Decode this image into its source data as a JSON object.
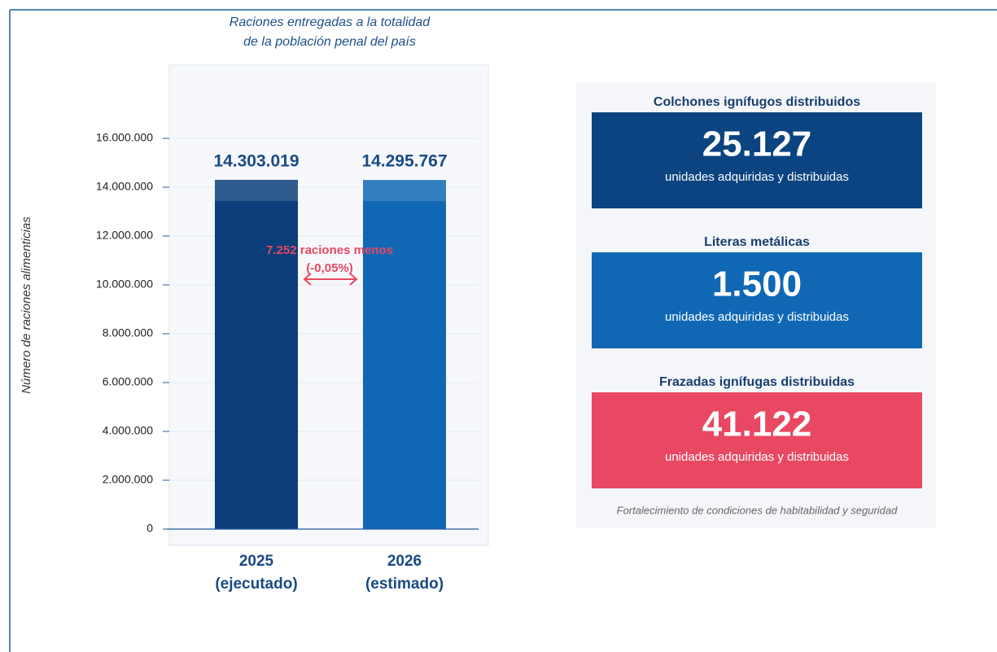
{
  "chart_data": {
    "type": "bar",
    "title": [
      "Raciones entregadas a la totalidad",
      "de la población penal del país"
    ],
    "y_label": "Número de raciones alimenticias",
    "categories": [
      [
        "2025",
        "(ejecutado)"
      ],
      [
        "2026",
        "(estimado)"
      ]
    ],
    "values": [
      14303019,
      14295767
    ],
    "value_labels": [
      "14.303.019",
      "14.295.767"
    ],
    "colors": [
      "#0b3e7a",
      "#1068b5"
    ],
    "ylim": [
      0,
      19000000
    ],
    "yticks": [
      0,
      {
        "value": 2000000,
        "label": "2.000.000"
      },
      {
        "value": 4000000,
        "label": "4.000.000"
      },
      {
        "value": 6000000,
        "label": "6.000.000"
      },
      {
        "value": 8000000,
        "label": "8.000.000"
      },
      {
        "value": 10000000,
        "label": "10.000.000"
      },
      {
        "value": 12000000,
        "label": "12.000.000"
      },
      {
        "value": 14000000,
        "label": "14.000.000"
      },
      {
        "value": 16000000,
        "label": "16.000.000"
      }
    ],
    "grid": true,
    "annotation": [
      "7.252 raciones menos",
      "(-0,05%)"
    ]
  },
  "cards": {
    "items": [
      {
        "title": "Colchones ignífugos distribuidos",
        "value": "25.127",
        "subtitle": "unidades adquiridas y distribuidas",
        "color": "#0b4480"
      },
      {
        "title": "Literas metálicas",
        "value": "1.500",
        "subtitle": "unidades adquiridas y distribuidas",
        "color": "#1068b5"
      },
      {
        "title": "Frazadas ignífugas distribuidas",
        "value": "41.122",
        "subtitle": "unidades adquiridas y distribuidas",
        "color": "#e84861"
      }
    ],
    "footnote": "Fortalecimiento de condiciones de habitabilidad y seguridad"
  }
}
